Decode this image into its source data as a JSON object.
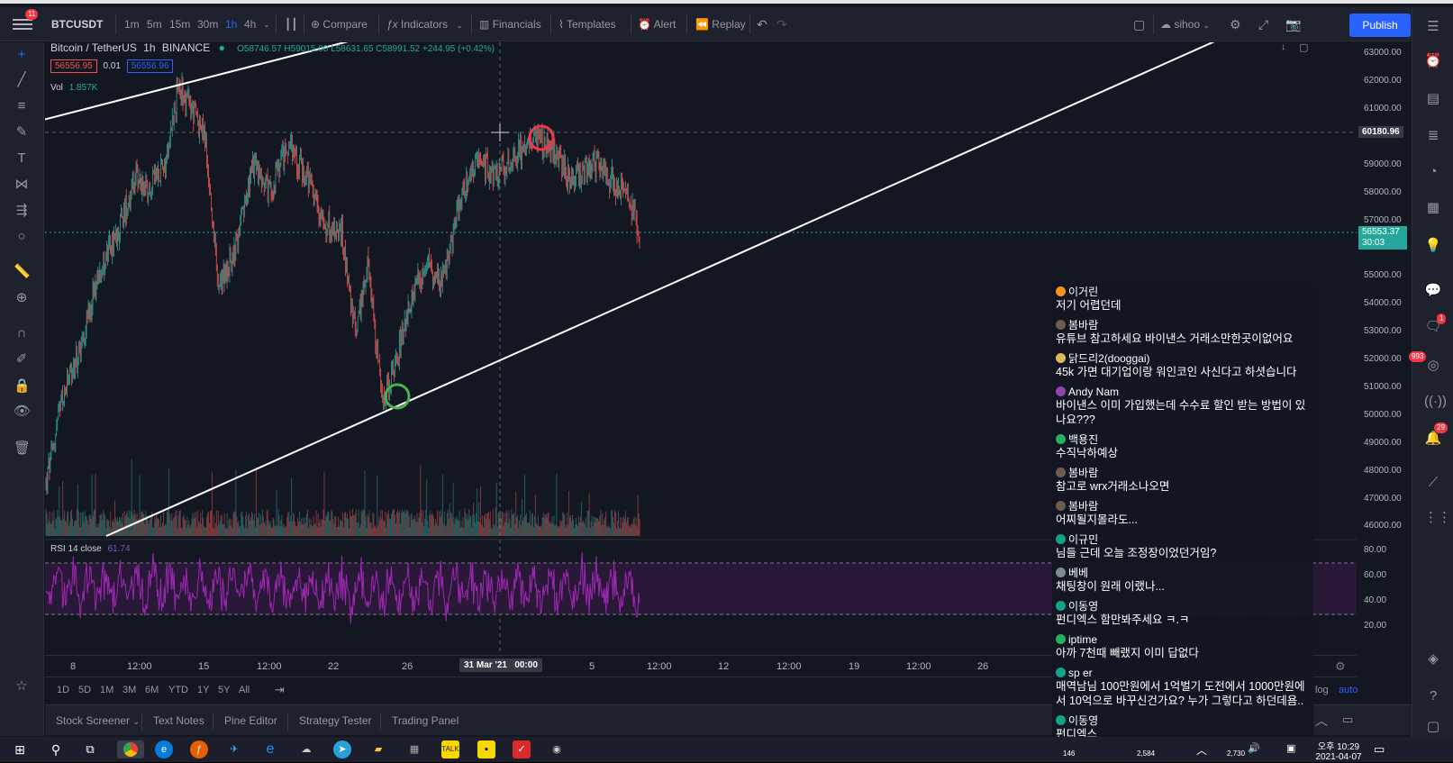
{
  "topbar": {
    "notif_count": "11",
    "symbol": "BTCUSDT",
    "intervals": [
      "1m",
      "5m",
      "15m",
      "30m",
      "1h",
      "4h"
    ],
    "active_interval": "1h",
    "compare": "Compare",
    "indicators": "Indicators",
    "financials": "Financials",
    "templates": "Templates",
    "alert": "Alert",
    "replay": "Replay",
    "user": "sihoo",
    "publish": "Publish"
  },
  "legend": {
    "title": "Bitcoin / TetherUS",
    "interval": "1h",
    "exchange": "BINANCE",
    "ohlc": "O58746.57 H59015.00 L58631.65 C58991.52 +244.95 (+0.42%)",
    "bid": "56556.95",
    "spread": "0.01",
    "ask": "56556.96",
    "vol_label": "Vol",
    "vol_value": "1.857K",
    "rsi_label": "RSI 14 close",
    "rsi_value": "61.74"
  },
  "price_axis": {
    "labels": [
      "63000.00",
      "62000.00",
      "61000.00",
      "59000.00",
      "58000.00",
      "57000.00",
      "55000.00",
      "54000.00",
      "53000.00",
      "52000.00",
      "51000.00",
      "50000.00",
      "49000.00",
      "48000.00",
      "47000.00",
      "46000.00"
    ],
    "crosshair_price": "60180.96",
    "current_price": "56553.37",
    "countdown": "30:03",
    "rsi_labels": [
      "80.00",
      "60.00",
      "40.00",
      "20.00"
    ]
  },
  "time_axis": {
    "labels": [
      "8",
      "12:00",
      "15",
      "12:00",
      "22",
      "26",
      "5",
      "12:00",
      "12",
      "12:00",
      "19",
      "12:00",
      "26"
    ],
    "crosshair_date": "31 Mar '21",
    "crosshair_time": "00:00"
  },
  "range_bar": {
    "ranges": [
      "1D",
      "5D",
      "1M",
      "3M",
      "6M",
      "YTD",
      "1Y",
      "5Y",
      "All"
    ],
    "log": "log",
    "auto": "auto"
  },
  "bottom_tabs": [
    "Stock Screener",
    "Text Notes",
    "Pine Editor",
    "Strategy Tester",
    "Trading Panel"
  ],
  "right_badges": {
    "b1": "1",
    "b2": "993",
    "b3": "29"
  },
  "chat": [
    {
      "user": "이거린",
      "text": "저기 어렵던데",
      "color": "#f7931a"
    },
    {
      "user": "봄바람",
      "text": "유튜브 참고하세요 바이낸스 거래소만한곳이없어요",
      "color": "#6d5c4d"
    },
    {
      "user": "닭드리2(dooggai)",
      "text": "45k 가면 대기업이랑 워인코인 사신다고 하셧습니다",
      "color": "#e0b85c"
    },
    {
      "user": "Andy Nam",
      "text": "바이낸스 이미 가입했는데 수수료 할인 받는 방법이 있나요???",
      "color": "#8e44ad"
    },
    {
      "user": "백용진",
      "text": "수직낙하예상",
      "color": "#27ae60"
    },
    {
      "user": "봄바람",
      "text": "참고로 wrx거래소나오면",
      "color": "#6d5c4d"
    },
    {
      "user": "봄바람",
      "text": "어찌될지몰라도...",
      "color": "#6d5c4d"
    },
    {
      "user": "이규민",
      "text": "님들 근데 오늘 조정장이었던거임?",
      "color": "#16a085"
    },
    {
      "user": "베베",
      "text": "채팅창이 원래 이랬나...",
      "color": "#7f8c8d"
    },
    {
      "user": "이동영",
      "text": "펀디엑스 함만봐주세요 ㅋ.ㅋ",
      "color": "#16a085"
    },
    {
      "user": "iptime",
      "text": "아까 7천때 빼랬지 이미 답없다",
      "color": "#27ae60"
    },
    {
      "user": "sp er",
      "text": "매역남님 100만원에서 1억벌기 도전에서 1000만원에서 10억으로 바꾸신건가요? 누가 그렇다고 하던데욤..",
      "color": "#16a085"
    },
    {
      "user": "이동영",
      "text": "펀디엑스",
      "color": "#16a085"
    }
  ],
  "chat_footer": {
    "c1": "146",
    "c2": "2,584",
    "c3": "2,730"
  },
  "taskbar": {
    "time": "오후 10:29",
    "date": "2021-04-07"
  },
  "colors": {
    "bg": "#131722",
    "panel": "#1e222d",
    "up": "#26a69a",
    "down": "#ef5350",
    "rsi": "#9c27b0",
    "accent": "#2962ff"
  }
}
